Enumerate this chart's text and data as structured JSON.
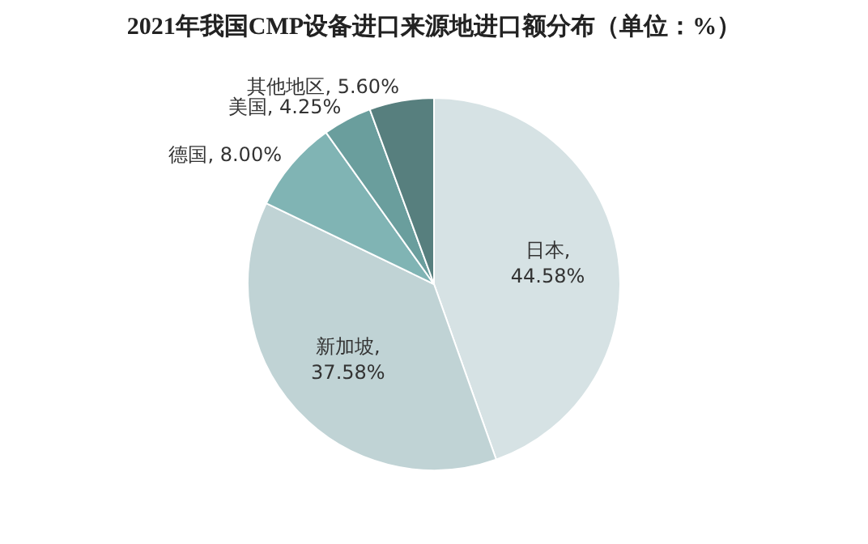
{
  "chart_data": {
    "type": "pie",
    "title": "2021年我国CMP设备进口来源地进口额分布（单位：%）",
    "categories": [
      "日本",
      "新加坡",
      "德国",
      "美国",
      "其他地区"
    ],
    "values": [
      44.58,
      37.58,
      8.0,
      4.25,
      5.6
    ],
    "value_labels": [
      ", 44.58%",
      ", 37.58%",
      ", 8.00%",
      ", 4.25%",
      ", 5.60%"
    ],
    "colors": [
      "#d6e2e4",
      "#c0d3d5",
      "#80b4b4",
      "#6a9e9d",
      "#577f7e"
    ],
    "legend": false
  }
}
